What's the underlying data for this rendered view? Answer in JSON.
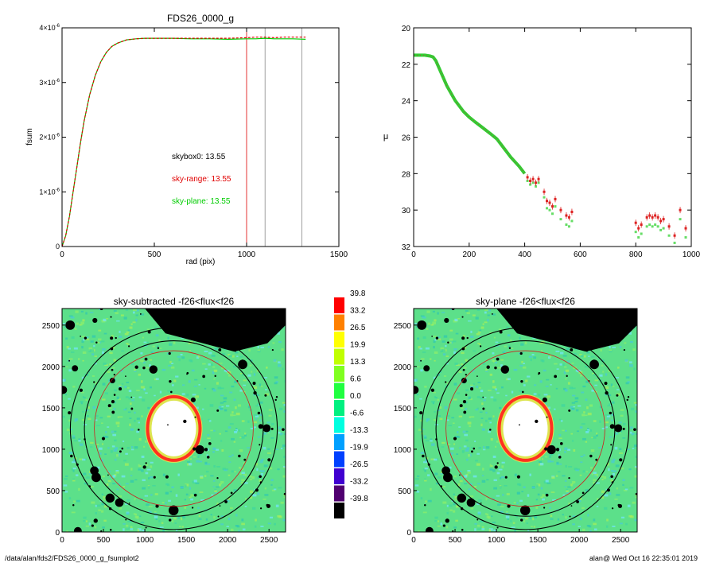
{
  "footer": {
    "path": "/data/alan/fds2/FDS26_0000_g_fsumplot2",
    "stamp": "alan@  Wed Oct 16 22:35:01 2019"
  },
  "chart_data": [
    {
      "id": "fsum",
      "type": "line",
      "title": "FDS26_0000_g",
      "xlabel": "rad (pix)",
      "ylabel": "fsum",
      "xlim": [
        0,
        1500
      ],
      "ylim": [
        0,
        4e-06
      ],
      "xticks": [
        0,
        500,
        1000,
        1500
      ],
      "yticks": [
        {
          "v": 0,
          "label": "0"
        },
        {
          "v": 1e-06,
          "label": "1×10",
          "exp": "-6"
        },
        {
          "v": 2e-06,
          "label": "2×10",
          "exp": "-6"
        },
        {
          "v": 3e-06,
          "label": "3×10",
          "exp": "-6"
        },
        {
          "v": 4e-06,
          "label": "4×10",
          "exp": "-6"
        }
      ],
      "series": [
        {
          "color": "#00cc00",
          "x": [
            0,
            20,
            40,
            60,
            80,
            100,
            120,
            150,
            180,
            210,
            240,
            270,
            300,
            350,
            400,
            450,
            500,
            600,
            700,
            800,
            900,
            1000,
            1050,
            1100,
            1150,
            1200,
            1250,
            1320
          ],
          "y": [
            0,
            0.2,
            0.55,
            1.0,
            1.45,
            1.9,
            2.3,
            2.78,
            3.13,
            3.38,
            3.55,
            3.66,
            3.72,
            3.78,
            3.8,
            3.81,
            3.81,
            3.81,
            3.8,
            3.8,
            3.79,
            3.8,
            3.8,
            3.81,
            3.8,
            3.8,
            3.8,
            3.79
          ]
        },
        {
          "color": "#e00000",
          "x": [
            0,
            20,
            40,
            60,
            80,
            100,
            120,
            150,
            180,
            210,
            240,
            270,
            300,
            350,
            400,
            450,
            500,
            600,
            700,
            800,
            900,
            1000,
            1050,
            1100,
            1150,
            1200,
            1250,
            1320
          ],
          "y": [
            0,
            0.2,
            0.55,
            1.0,
            1.45,
            1.9,
            2.3,
            2.78,
            3.13,
            3.38,
            3.55,
            3.66,
            3.72,
            3.78,
            3.8,
            3.81,
            3.81,
            3.81,
            3.81,
            3.81,
            3.81,
            3.82,
            3.83,
            3.83,
            3.82,
            3.83,
            3.83,
            3.83
          ]
        }
      ],
      "vlines": [
        {
          "x": 1000,
          "color": "#e00000"
        },
        {
          "x": 1100,
          "color": "#888888"
        },
        {
          "x": 1300,
          "color": "#888888"
        }
      ],
      "annotations": [
        {
          "text": "skybox0: 13.55",
          "color": "#000000"
        },
        {
          "text": "sky-range: 13.55",
          "color": "#e00000"
        },
        {
          "text": "sky-plane: 13.55",
          "color": "#00cc00"
        }
      ]
    },
    {
      "id": "mu",
      "type": "scatter",
      "title": "",
      "xlabel": "",
      "ylabel": "μ",
      "xlim": [
        0,
        1000
      ],
      "ylim": [
        32,
        20
      ],
      "xticks": [
        0,
        200,
        400,
        600,
        800,
        1000
      ],
      "yticks": [
        20,
        22,
        24,
        26,
        28,
        30,
        32
      ],
      "profile": {
        "x": [
          0,
          20,
          40,
          60,
          70,
          80,
          100,
          120,
          150,
          180,
          200,
          220,
          250,
          280,
          300,
          320,
          350,
          380,
          400
        ],
        "y": [
          21.5,
          21.5,
          21.5,
          21.55,
          21.6,
          21.8,
          22.5,
          23.2,
          24.0,
          24.6,
          24.9,
          25.15,
          25.5,
          25.85,
          26.1,
          26.5,
          27.1,
          27.6,
          28.0
        ]
      },
      "scatter_red": {
        "x": [
          410,
          420,
          430,
          440,
          450,
          470,
          480,
          490,
          500,
          510,
          530,
          550,
          560,
          570,
          800,
          810,
          820,
          840,
          850,
          860,
          870,
          880,
          890,
          900,
          920,
          940,
          960,
          980
        ],
        "y": [
          28.2,
          28.4,
          28.3,
          28.5,
          28.3,
          29.0,
          29.5,
          29.6,
          29.8,
          29.4,
          30.0,
          30.3,
          30.4,
          30.1,
          30.7,
          31.0,
          30.8,
          30.4,
          30.3,
          30.4,
          30.3,
          30.4,
          30.6,
          30.5,
          30.9,
          31.4,
          30.0,
          31.0
        ]
      },
      "scatter_green": {
        "x": [
          410,
          420,
          430,
          440,
          450,
          470,
          480,
          490,
          500,
          510,
          530,
          550,
          560,
          570,
          800,
          810,
          820,
          840,
          850,
          860,
          870,
          880,
          890,
          900,
          920,
          940,
          960,
          980
        ],
        "y": [
          28.4,
          28.6,
          28.5,
          28.7,
          28.5,
          29.3,
          29.9,
          30.0,
          30.2,
          29.8,
          30.5,
          30.8,
          30.9,
          30.6,
          31.2,
          31.5,
          31.3,
          30.9,
          30.8,
          30.9,
          30.8,
          30.9,
          31.1,
          31.0,
          31.4,
          31.8,
          30.5,
          31.5
        ]
      }
    },
    {
      "id": "map_sub",
      "type": "heatmap",
      "title": "sky-subtracted -f26<flux<f26",
      "xticks": [
        0,
        500,
        1000,
        1500,
        2000,
        2500
      ],
      "yticks": [
        0,
        500,
        1000,
        1500,
        2000,
        2500
      ],
      "xlim": [
        0,
        2700
      ],
      "ylim": [
        0,
        2700
      ]
    },
    {
      "id": "map_plane",
      "type": "heatmap",
      "title": "sky-plane -f26<flux<f26",
      "xticks": [
        0,
        500,
        1000,
        1500,
        2000,
        2500
      ],
      "yticks": [
        0,
        500,
        1000,
        1500,
        2000,
        2500
      ],
      "xlim": [
        0,
        2700
      ],
      "ylim": [
        0,
        2700
      ]
    },
    {
      "id": "colorbar",
      "type": "table",
      "labels": [
        "39.8",
        "33.2",
        "26.5",
        "19.9",
        "13.3",
        "6.6",
        "0.0",
        "-6.6",
        "-13.3",
        "-19.9",
        "-26.5",
        "-33.2",
        "-39.8"
      ],
      "colors": [
        "#ff0000",
        "#ff8000",
        "#ffff00",
        "#c0ff00",
        "#80ff20",
        "#20ff40",
        "#00f080",
        "#00ffe0",
        "#00a0ff",
        "#0040ff",
        "#4000d0",
        "#500070",
        "#000000"
      ]
    }
  ]
}
